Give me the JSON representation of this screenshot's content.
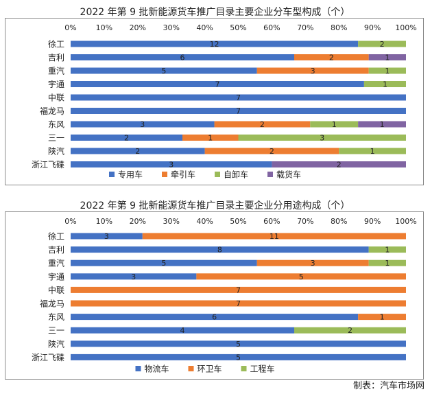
{
  "credit": "制表：汽车市场网",
  "chart_data": [
    {
      "type": "bar",
      "orientation": "horizontal",
      "stacked": "percent",
      "title": "2022 年第 9 批新能源货车推广目录主要企业分车型构成（个）",
      "xticks": [
        "0%",
        "10%",
        "20%",
        "30%",
        "40%",
        "50%",
        "60%",
        "70%",
        "80%",
        "90%",
        "100%"
      ],
      "categories": [
        "徐工",
        "吉利",
        "重汽",
        "宇通",
        "中联",
        "福龙马",
        "东风",
        "三一",
        "陕汽",
        "浙江飞碟"
      ],
      "series": [
        {
          "name": "专用车",
          "color": "#4472C4",
          "values": [
            12,
            6,
            5,
            7,
            7,
            7,
            3,
            2,
            2,
            3
          ]
        },
        {
          "name": "牵引车",
          "color": "#ED7D31",
          "values": [
            0,
            2,
            3,
            0,
            0,
            0,
            2,
            1,
            2,
            0
          ]
        },
        {
          "name": "自卸车",
          "color": "#9BBB59",
          "values": [
            2,
            0,
            1,
            1,
            0,
            0,
            1,
            3,
            1,
            0
          ]
        },
        {
          "name": "载货车",
          "color": "#8064A2",
          "values": [
            0,
            1,
            0,
            0,
            0,
            0,
            1,
            0,
            0,
            2
          ]
        }
      ],
      "legend_position": "bottom"
    },
    {
      "type": "bar",
      "orientation": "horizontal",
      "stacked": "percent",
      "title": "2022 年第 9 批新能源货车推广目录主要企业分用途构成（个）",
      "xticks": [
        "0%",
        "10%",
        "20%",
        "30%",
        "40%",
        "50%",
        "60%",
        "70%",
        "80%",
        "90%",
        "100%"
      ],
      "categories": [
        "徐工",
        "吉利",
        "重汽",
        "宇通",
        "中联",
        "福龙马",
        "东风",
        "三一",
        "陕汽",
        "浙江飞碟"
      ],
      "series": [
        {
          "name": "物流车",
          "color": "#4472C4",
          "values": [
            3,
            8,
            5,
            3,
            0,
            0,
            6,
            4,
            5,
            5
          ]
        },
        {
          "name": "环卫车",
          "color": "#ED7D31",
          "values": [
            11,
            0,
            3,
            5,
            7,
            7,
            1,
            0,
            0,
            0
          ]
        },
        {
          "name": "工程车",
          "color": "#9BBB59",
          "values": [
            0,
            1,
            1,
            0,
            0,
            0,
            0,
            2,
            0,
            0
          ]
        }
      ],
      "legend_position": "bottom"
    }
  ]
}
